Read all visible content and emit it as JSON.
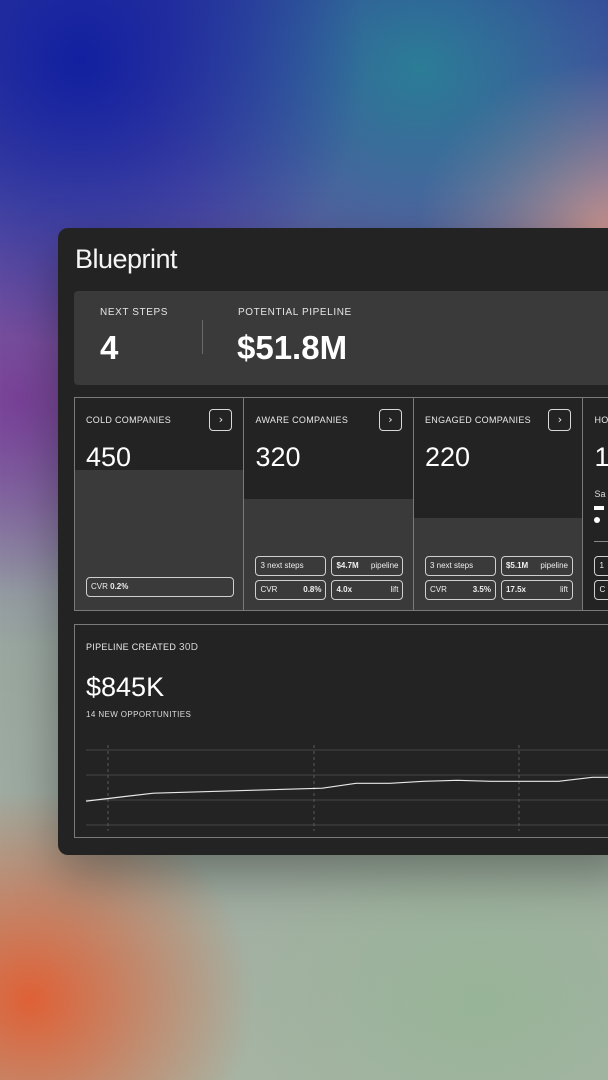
{
  "app": {
    "title": "Blueprint"
  },
  "summary": {
    "next_steps_label": "NEXT STEPS",
    "next_steps_value": "4",
    "pipeline_label": "POTENTIAL PIPELINE",
    "pipeline_value": "$51.8M"
  },
  "cards": [
    {
      "label": "COLD COMPANIES",
      "value": "450",
      "cvr_label": "CVR",
      "cvr_value": "0.2%"
    },
    {
      "label": "AWARE COMPANIES",
      "value": "320",
      "next_steps": "3 next steps",
      "pipeline_value": "$4.7M",
      "pipeline_label": "pipeline",
      "cvr_label": "CVR",
      "cvr_value": "0.8%",
      "lift_value": "4.0x",
      "lift_label": "lift"
    },
    {
      "label": "ENGAGED COMPANIES",
      "value": "220",
      "next_steps": "3 next steps",
      "pipeline_value": "$5.1M",
      "pipeline_label": "pipeline",
      "cvr_label": "CVR",
      "cvr_value": "3.5%",
      "lift_value": "17.5x",
      "lift_label": "lift"
    },
    {
      "label": "HO",
      "value": "1",
      "sub_label": "Sa",
      "pill_1": "1",
      "pill_2": "C"
    }
  ],
  "pipeline_created": {
    "label": "PIPELINE CREATED",
    "period": "30D",
    "value": "$845K",
    "subtitle": "14 NEW OPPORTUNITIES"
  },
  "chart_data": {
    "type": "line",
    "title": "",
    "xlabel": "",
    "ylabel": "",
    "grid": true,
    "ylim": [
      0,
      100
    ],
    "series": [
      {
        "values": [
          20,
          28,
          36,
          38,
          40,
          42,
          44,
          46,
          56,
          56,
          60,
          62,
          60,
          60,
          60,
          68,
          68
        ]
      }
    ]
  }
}
